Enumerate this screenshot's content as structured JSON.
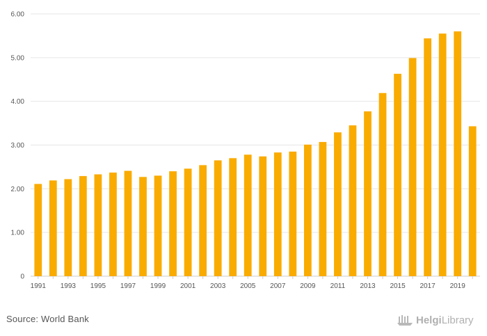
{
  "chart_data": {
    "type": "bar",
    "title": "",
    "xlabel": "",
    "ylabel": "",
    "ylim": [
      0,
      6
    ],
    "y_ticks": [
      0,
      1,
      2,
      3,
      4,
      5,
      6
    ],
    "y_tick_labels": [
      "0",
      "1.00",
      "2.00",
      "3.00",
      "4.00",
      "5.00",
      "6.00"
    ],
    "categories": [
      "1991",
      "1992",
      "1993",
      "1994",
      "1995",
      "1996",
      "1997",
      "1998",
      "1999",
      "2000",
      "2001",
      "2002",
      "2003",
      "2004",
      "2005",
      "2006",
      "2007",
      "2008",
      "2009",
      "2010",
      "2011",
      "2012",
      "2013",
      "2014",
      "2015",
      "2016",
      "2017",
      "2018",
      "2019",
      "2020"
    ],
    "x_tick_labels": [
      "1991",
      "1993",
      "1995",
      "1997",
      "1999",
      "2001",
      "2003",
      "2005",
      "2007",
      "2009",
      "2011",
      "2013",
      "2015",
      "2017",
      "2019"
    ],
    "values": [
      2.11,
      2.19,
      2.22,
      2.29,
      2.33,
      2.37,
      2.41,
      2.27,
      2.3,
      2.4,
      2.46,
      2.54,
      2.65,
      2.7,
      2.78,
      2.74,
      2.83,
      2.85,
      3.01,
      3.07,
      3.29,
      3.45,
      3.77,
      4.19,
      4.63,
      4.99,
      5.44,
      5.55,
      5.6,
      3.43
    ],
    "grid": true,
    "bar_color": "#f9ab00"
  },
  "footer": {
    "source_text": "Source: World Bank",
    "logo_part1": "Helgi",
    "logo_part2": "Library",
    "logo_icon": "helgi-boat-logo-icon"
  }
}
